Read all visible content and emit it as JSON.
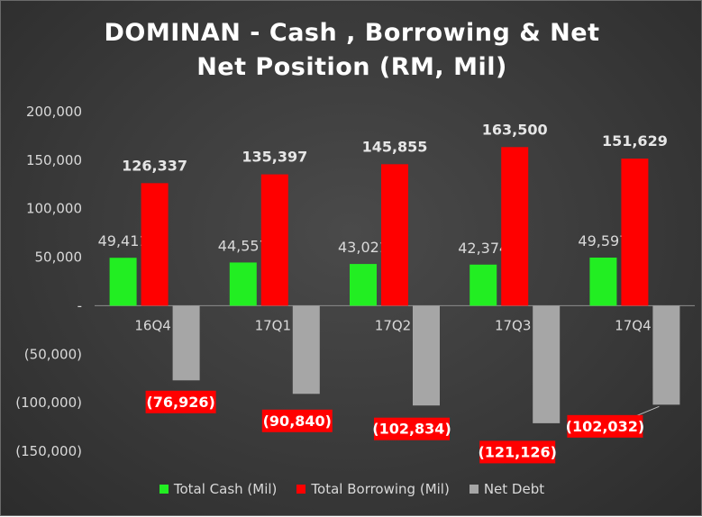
{
  "chart_data": {
    "type": "bar",
    "title": "DOMINAN - Cash , Borrowing & Net",
    "subtitle": "Net Position (RM, Mil)",
    "categories": [
      "16Q4",
      "17Q1",
      "17Q2",
      "17Q3",
      "17Q4"
    ],
    "series": [
      {
        "name": "Total Cash (Mil)",
        "color": "#22ee22",
        "values": [
          49411,
          44557,
          43021,
          42374,
          49597
        ],
        "labels": [
          "49,411",
          "44,557",
          "43,021",
          "42,374",
          "49,597"
        ]
      },
      {
        "name": "Total Borrowing (Mil)",
        "color": "#ff0000",
        "values": [
          126337,
          135397,
          145855,
          163500,
          151629
        ],
        "labels": [
          "126,337",
          "135,397",
          "145,855",
          "163,500",
          "151,629"
        ]
      },
      {
        "name": "Net Debt",
        "color": "#a6a6a6",
        "values": [
          -76926,
          -90840,
          -102834,
          -121126,
          -102032
        ],
        "labels": [
          "(76,926)",
          "(90,840)",
          "(102,834)",
          "(121,126)",
          "(102,032)"
        ]
      }
    ],
    "y_ticks": [
      200000,
      150000,
      100000,
      50000,
      0,
      -50000,
      -100000,
      -150000
    ],
    "y_tick_labels": [
      "200,000",
      "150,000",
      "100,000",
      "50,000",
      "-",
      "(50,000)",
      "(100,000)",
      "(150,000)"
    ],
    "ylim": [
      -150000,
      200000
    ],
    "grid": false,
    "legend_position": "bottom",
    "label_box_color": "#ff0000"
  }
}
